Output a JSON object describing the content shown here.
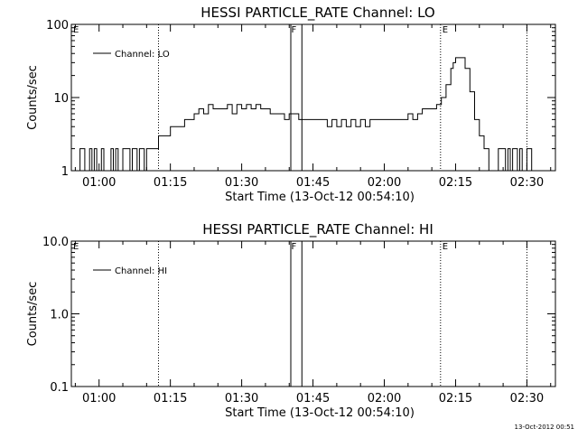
{
  "chart_data": [
    {
      "type": "line",
      "title": "HESSI PARTICLE_RATE Channel: LO",
      "xlabel": "Start Time (13-Oct-12 00:54:10)",
      "ylabel": "Counts/sec",
      "yscale": "log",
      "ylim": [
        1,
        100
      ],
      "xlim": [
        "00:54:10",
        "02:36:00"
      ],
      "xticks": [
        "01:00",
        "01:15",
        "01:30",
        "01:45",
        "02:00",
        "02:15",
        "02:30"
      ],
      "yticks": [
        "1",
        "10",
        "100"
      ],
      "legend": {
        "label": "Channel: LO",
        "position": "top-left"
      },
      "series": [
        {
          "name": "Channel: LO",
          "x": [
            "00:54:10",
            "00:55:30",
            "00:56:00",
            "00:56:30",
            "00:57:00",
            "00:57:30",
            "00:58:00",
            "00:58:30",
            "00:59:00",
            "00:59:30",
            "01:00:00",
            "01:00:30",
            "01:01:00",
            "01:02:00",
            "01:02:30",
            "01:03:00",
            "01:03:30",
            "01:04:00",
            "01:05:00",
            "01:06:00",
            "01:06:30",
            "01:07:00",
            "01:08:00",
            "01:08:30",
            "01:09:00",
            "01:09:30",
            "01:10:00",
            "01:11:00",
            "01:12:00",
            "01:12:30",
            "01:15:00",
            "01:16:00",
            "01:17:00",
            "01:18:00",
            "01:19:00",
            "01:20:00",
            "01:21:00",
            "01:22:00",
            "01:23:00",
            "01:24:00",
            "01:25:00",
            "01:26:00",
            "01:27:00",
            "01:28:00",
            "01:29:00",
            "01:30:00",
            "01:31:00",
            "01:32:00",
            "01:33:00",
            "01:34:00",
            "01:35:00",
            "01:36:00",
            "01:37:00",
            "01:38:00",
            "01:39:00",
            "01:40:00",
            "01:41:00",
            "01:42:00",
            "01:43:00",
            "01:45:00",
            "01:46:00",
            "01:47:00",
            "01:48:00",
            "01:49:00",
            "01:50:00",
            "01:51:00",
            "01:52:00",
            "01:53:00",
            "01:54:00",
            "01:55:00",
            "01:56:00",
            "01:57:00",
            "01:58:00",
            "02:00:00",
            "02:02:00",
            "02:04:00",
            "02:05:00",
            "02:06:00",
            "02:07:00",
            "02:08:00",
            "02:09:00",
            "02:10:00",
            "02:11:00",
            "02:12:00",
            "02:13:00",
            "02:14:00",
            "02:14:30",
            "02:15:00",
            "02:16:00",
            "02:17:00",
            "02:18:00",
            "02:19:00",
            "02:20:00",
            "02:21:00",
            "02:22:00",
            "02:23:00",
            "02:24:00",
            "02:24:30",
            "02:25:00",
            "02:25:30",
            "02:26:00",
            "02:26:30",
            "02:27:00",
            "02:27:30",
            "02:28:00",
            "02:28:30",
            "02:29:00",
            "02:30:00",
            "02:31:00"
          ],
          "values": [
            1,
            1,
            2,
            2,
            1,
            1,
            2,
            1,
            2,
            1,
            1,
            2,
            1,
            1,
            2,
            1,
            2,
            1,
            2,
            2,
            1,
            2,
            1,
            2,
            2,
            1,
            2,
            2,
            2,
            3,
            4,
            4,
            4,
            5,
            5,
            6,
            7,
            6,
            8,
            7,
            7,
            7,
            8,
            6,
            8,
            7,
            8,
            7,
            8,
            7,
            7,
            6,
            6,
            6,
            5,
            6,
            6,
            5,
            5,
            5,
            5,
            5,
            4,
            5,
            4,
            5,
            4,
            5,
            4,
            5,
            4,
            5,
            5,
            5,
            5,
            5,
            6,
            5,
            6,
            7,
            7,
            7,
            8,
            10,
            15,
            25,
            30,
            35,
            35,
            25,
            12,
            5,
            3,
            2,
            1,
            1,
            2,
            2,
            2,
            1,
            2,
            1,
            2,
            2,
            1,
            2,
            1,
            2,
            1
          ]
        }
      ],
      "annotations": [
        {
          "label": "E",
          "x": "00:54:10"
        },
        {
          "label": "F",
          "x": "01:41:00"
        },
        {
          "label": "E",
          "x": "02:11:50"
        }
      ],
      "vlines_dotted": [
        "01:12:30",
        "02:11:50",
        "02:30:00"
      ],
      "vlines_solid": [
        "01:40:20",
        "01:42:40"
      ]
    },
    {
      "type": "line",
      "title": "HESSI PARTICLE_RATE Channel: HI",
      "xlabel": "Start Time (13-Oct-12 00:54:10)",
      "ylabel": "Counts/sec",
      "yscale": "log",
      "ylim": [
        0.1,
        10
      ],
      "xlim": [
        "00:54:10",
        "02:36:00"
      ],
      "xticks": [
        "01:00",
        "01:15",
        "01:30",
        "01:45",
        "02:00",
        "02:15",
        "02:30"
      ],
      "yticks": [
        "0.1",
        "1.0",
        "10.0"
      ],
      "legend": {
        "label": "Channel: HI",
        "position": "top-left"
      },
      "series": [
        {
          "name": "Channel: HI",
          "x": [],
          "values": []
        }
      ],
      "annotations": [
        {
          "label": "E",
          "x": "00:54:10"
        },
        {
          "label": "F",
          "x": "01:41:00"
        },
        {
          "label": "E",
          "x": "02:11:50"
        }
      ],
      "vlines_dotted": [
        "01:12:30",
        "02:11:50",
        "02:30:00"
      ],
      "vlines_solid": [
        "01:40:20",
        "01:42:40"
      ]
    }
  ],
  "footer": {
    "stamp": "13-Oct-2012 00:51"
  }
}
